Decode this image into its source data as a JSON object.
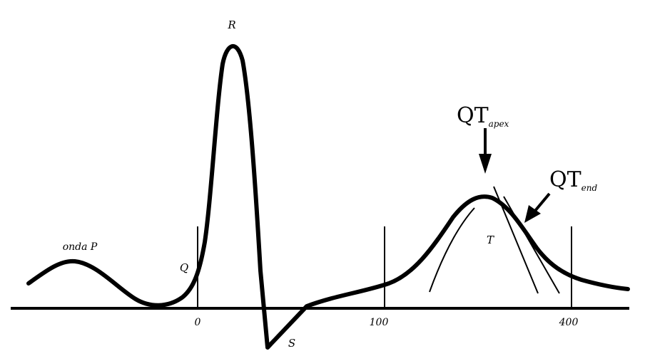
{
  "labels": {
    "r": "R",
    "q": "Q",
    "s": "S",
    "t": "T",
    "p": "onda P",
    "qt_apex_main": "QT",
    "qt_apex_sub": "apex",
    "qt_end_main": "QT",
    "qt_end_sub": "end"
  },
  "ticks": [
    "0",
    "100",
    "400"
  ]
}
